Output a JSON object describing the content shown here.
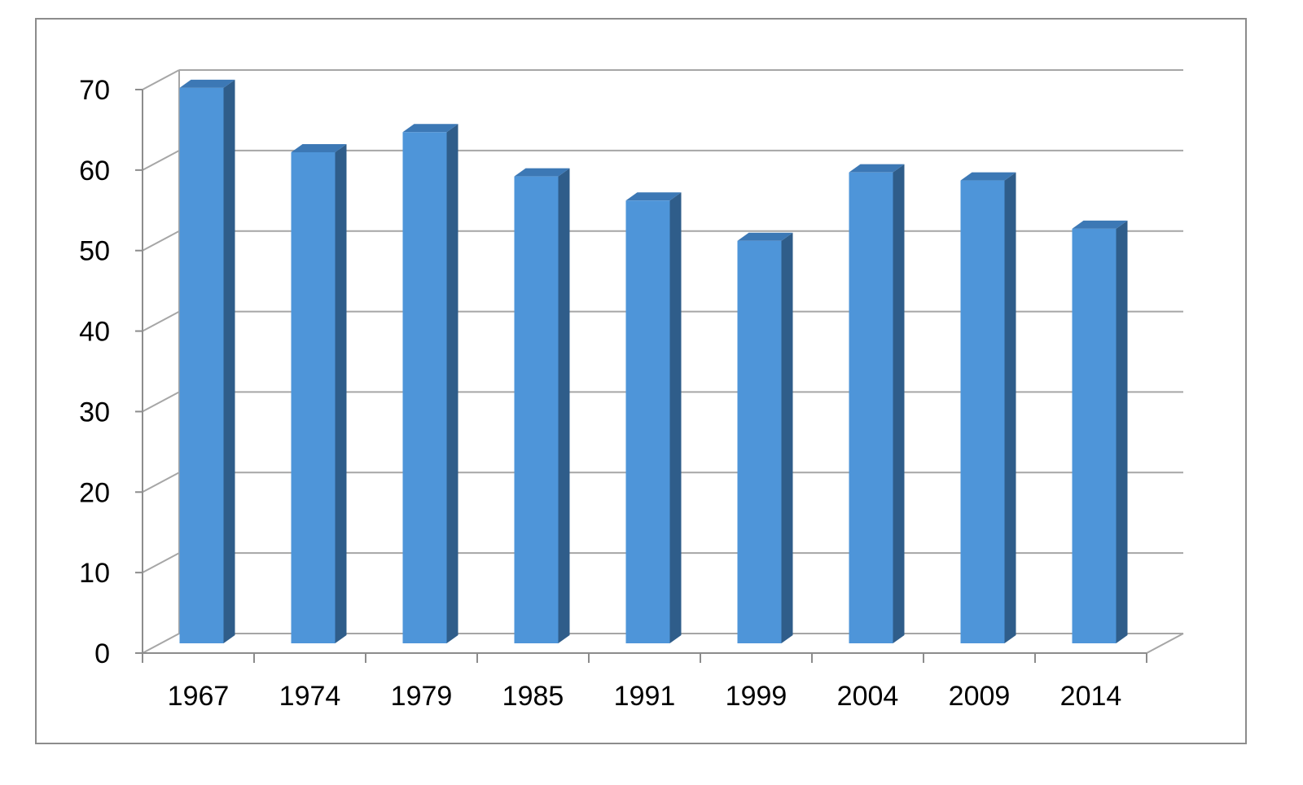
{
  "chart_data": {
    "type": "bar",
    "style": "3d-column",
    "title": "",
    "xlabel": "",
    "ylabel": "",
    "categories": [
      "1967",
      "1974",
      "1979",
      "1985",
      "1991",
      "1999",
      "2004",
      "2009",
      "2014"
    ],
    "values": [
      69,
      61,
      63.5,
      58,
      55,
      50,
      58.5,
      57.5,
      51.5
    ],
    "ylim": [
      0,
      70
    ],
    "yticks": [
      0,
      10,
      20,
      30,
      40,
      50,
      60,
      70
    ],
    "grid": true,
    "legend": "none",
    "colors": {
      "bar_front": "#4e95d9",
      "bar_side": "#2f5d8a",
      "bar_top": "#3c78b5",
      "grid": "#a6a6a6",
      "axis": "#8c8c8c"
    }
  }
}
